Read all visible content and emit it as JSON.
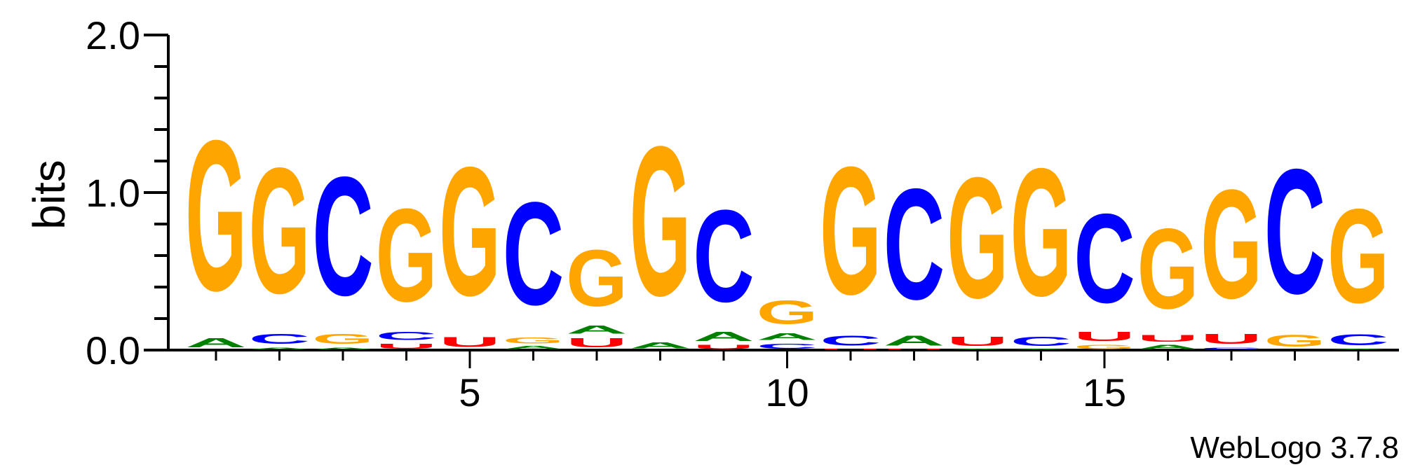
{
  "chart_data": {
    "type": "sequence-logo",
    "ylabel": "bits",
    "ylim": [
      0,
      2
    ],
    "y_ticks": [
      "0.0",
      "1.0",
      "2.0"
    ],
    "x_ticks": [
      {
        "position": 5,
        "label": "5"
      },
      {
        "position": 10,
        "label": "10"
      },
      {
        "position": 15,
        "label": "15"
      }
    ],
    "footer": "WebLogo 3.7.8",
    "colors": {
      "A": "#008000",
      "C": "#0000ff",
      "G": "#ffa500",
      "U": "#ff0000"
    },
    "positions": [
      {
        "pos": 1,
        "letters": [
          {
            "base": "A",
            "bits": 0.09
          },
          {
            "base": "G",
            "bits": 1.52
          }
        ]
      },
      {
        "pos": 2,
        "letters": [
          {
            "base": "A",
            "bits": 0.02
          },
          {
            "base": "C",
            "bits": 0.1
          },
          {
            "base": "G",
            "bits": 1.27
          }
        ]
      },
      {
        "pos": 3,
        "letters": [
          {
            "base": "A",
            "bits": 0.02
          },
          {
            "base": "G",
            "bits": 0.1
          },
          {
            "base": "C",
            "bits": 1.2
          }
        ]
      },
      {
        "pos": 4,
        "letters": [
          {
            "base": "U",
            "bits": 0.05
          },
          {
            "base": "C",
            "bits": 0.08
          },
          {
            "base": "G",
            "bits": 0.94
          }
        ]
      },
      {
        "pos": 5,
        "letters": [
          {
            "base": "U",
            "bits": 0.1
          },
          {
            "base": "G",
            "bits": 1.3
          }
        ]
      },
      {
        "pos": 6,
        "letters": [
          {
            "base": "A",
            "bits": 0.03
          },
          {
            "base": "G",
            "bits": 0.06
          },
          {
            "base": "C",
            "bits": 1.04
          }
        ]
      },
      {
        "pos": 7,
        "letters": [
          {
            "base": "U",
            "bits": 0.09
          },
          {
            "base": "A",
            "bits": 0.08
          },
          {
            "base": "G",
            "bits": 0.57
          }
        ]
      },
      {
        "pos": 8,
        "letters": [
          {
            "base": "A",
            "bits": 0.06
          },
          {
            "base": "G",
            "bits": 1.51
          }
        ]
      },
      {
        "pos": 9,
        "letters": [
          {
            "base": "U",
            "bits": 0.04
          },
          {
            "base": "A",
            "bits": 0.09
          },
          {
            "base": "C",
            "bits": 0.93
          }
        ]
      },
      {
        "pos": 10,
        "letters": [
          {
            "base": "C",
            "bits": 0.05
          },
          {
            "base": "A",
            "bits": 0.07
          },
          {
            "base": "G",
            "bits": 0.24
          }
        ]
      },
      {
        "pos": 11,
        "letters": [
          {
            "base": "U",
            "bits": 0.01
          },
          {
            "base": "C",
            "bits": 0.1
          },
          {
            "base": "G",
            "bits": 1.29
          }
        ]
      },
      {
        "pos": 12,
        "letters": [
          {
            "base": "U",
            "bits": 0.01
          },
          {
            "base": "A",
            "bits": 0.1
          },
          {
            "base": "C",
            "bits": 1.12
          }
        ]
      },
      {
        "pos": 13,
        "letters": [
          {
            "base": "A",
            "bits": 0.01
          },
          {
            "base": "U",
            "bits": 0.09
          },
          {
            "base": "G",
            "bits": 1.22
          }
        ]
      },
      {
        "pos": 14,
        "letters": [
          {
            "base": "A",
            "bits": 0.01
          },
          {
            "base": "C",
            "bits": 0.09
          },
          {
            "base": "G",
            "bits": 1.29
          }
        ]
      },
      {
        "pos": 15,
        "letters": [
          {
            "base": "G",
            "bits": 0.04
          },
          {
            "base": "U",
            "bits": 0.09
          },
          {
            "base": "C",
            "bits": 0.9
          }
        ]
      },
      {
        "pos": 16,
        "letters": [
          {
            "base": "A",
            "bits": 0.04
          },
          {
            "base": "U",
            "bits": 0.07
          },
          {
            "base": "G",
            "bits": 0.81
          }
        ]
      },
      {
        "pos": 17,
        "letters": [
          {
            "base": "C",
            "bits": 0.02
          },
          {
            "base": "U",
            "bits": 0.1
          },
          {
            "base": "G",
            "bits": 1.1
          }
        ]
      },
      {
        "pos": 18,
        "letters": [
          {
            "base": "G",
            "bits": 0.12
          },
          {
            "base": "C",
            "bits": 1.26
          }
        ]
      },
      {
        "pos": 19,
        "letters": [
          {
            "base": "A",
            "bits": 0.01
          },
          {
            "base": "C",
            "bits": 0.11
          },
          {
            "base": "G",
            "bits": 0.95
          }
        ]
      }
    ]
  }
}
